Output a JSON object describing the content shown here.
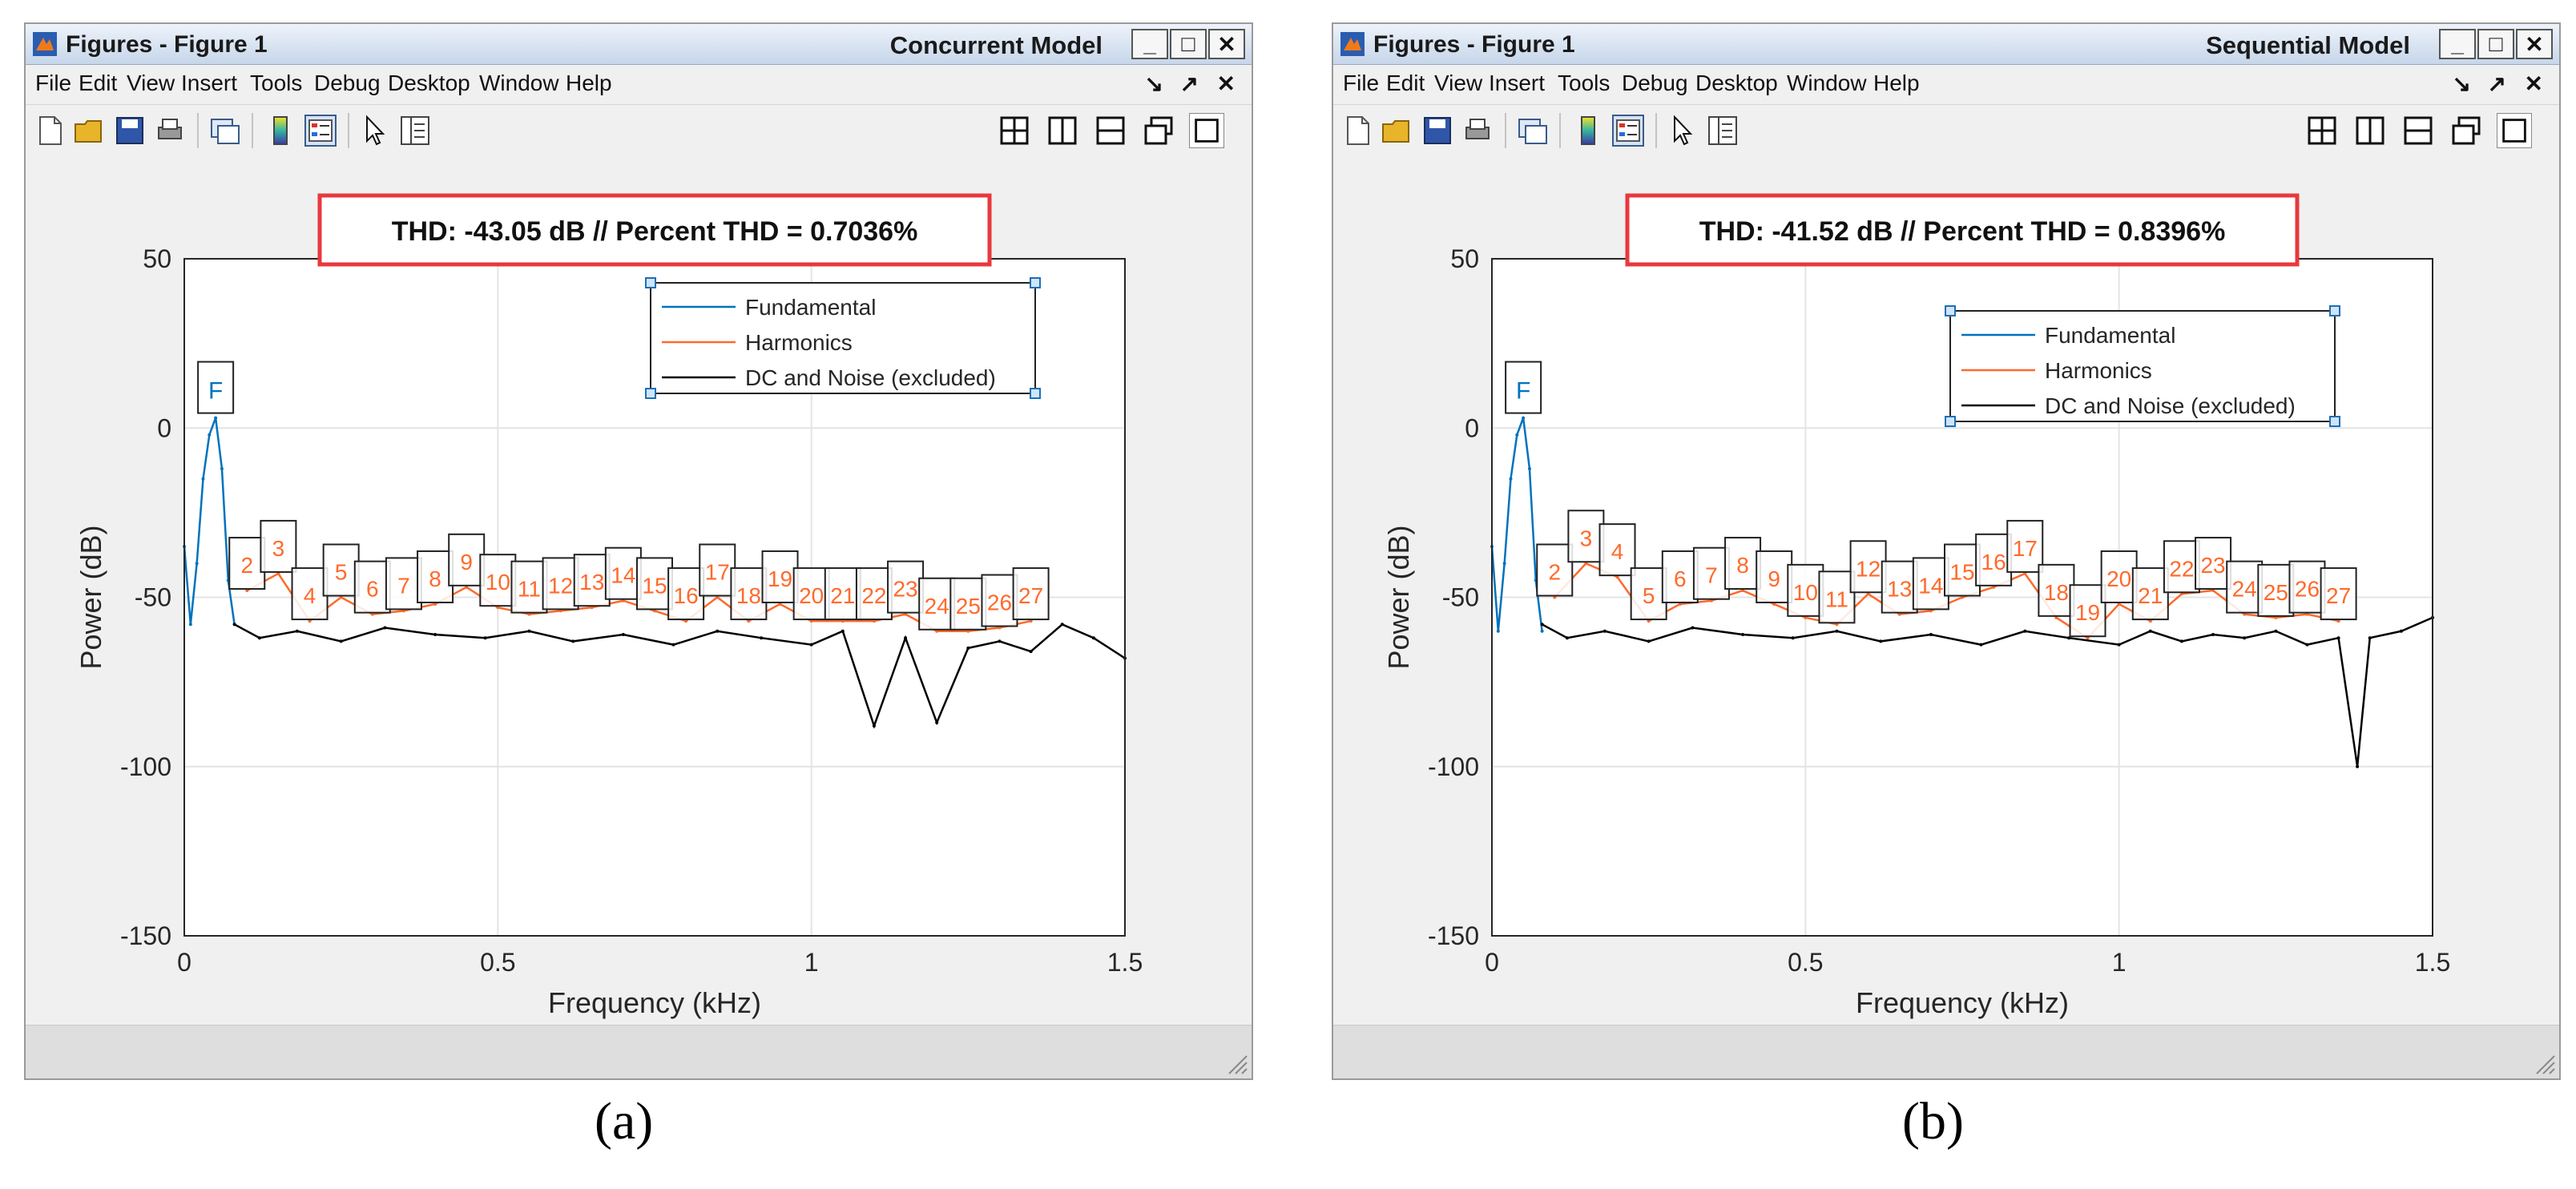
{
  "windows": [
    {
      "title": "Figures - Figure 1",
      "model_label": "Concurrent Model",
      "caption": "(a)",
      "menu": [
        "File",
        "Edit",
        "View",
        "Insert",
        "Tools",
        "Debug",
        "Desktop",
        "Window",
        "Help"
      ],
      "thd_text": "THD: -43.05 dB  //  Percent THD = 0.7036%",
      "legend": [
        "Fundamental",
        "Harmonics",
        "DC and Noise (excluded)"
      ],
      "harmonic_labels": [
        "2",
        "3",
        "4",
        "5",
        "6",
        "7",
        "8",
        "9",
        "10",
        "11",
        "12",
        "13",
        "14",
        "15",
        "16",
        "17",
        "18",
        "19",
        "20",
        "21",
        "22",
        "23",
        "24",
        "25",
        "26",
        "27"
      ]
    },
    {
      "title": "Figures - Figure 1",
      "model_label": "Sequential Model",
      "caption": "(b)",
      "menu": [
        "File",
        "Edit",
        "View",
        "Insert",
        "Tools",
        "Debug",
        "Desktop",
        "Window",
        "Help"
      ],
      "thd_text": "THD: -41.52 dB  //  Percent THD = 0.8396%",
      "legend": [
        "Fundamental",
        "Harmonics",
        "DC and Noise (excluded)"
      ],
      "harmonic_labels": [
        "2",
        "3",
        "4",
        "5",
        "6",
        "7",
        "8",
        "9",
        "10",
        "11",
        "12",
        "13",
        "14",
        "15",
        "16",
        "17",
        "18",
        "19",
        "20",
        "21",
        "22",
        "23",
        "24",
        "25",
        "26",
        "27"
      ]
    }
  ],
  "chart_data": [
    {
      "type": "line",
      "title": "THD: -43.05 dB  //  Percent THD = 0.7036%",
      "xlabel": "Frequency (kHz)",
      "ylabel": "Power (dB)",
      "xlim": [
        0,
        1.5
      ],
      "ylim": [
        -150,
        50
      ],
      "xticks": [
        "0",
        "0.5",
        "1",
        "1.5"
      ],
      "yticks": [
        "50",
        "0",
        "-50",
        "-100",
        "-150"
      ],
      "grid": true,
      "legend_position": "top-right",
      "fundamental": {
        "label": "F",
        "x": 0.05,
        "y": 3
      },
      "series": [
        {
          "name": "Fundamental",
          "color": "#0072bd",
          "x": [
            0.0,
            0.01,
            0.02,
            0.03,
            0.04,
            0.05,
            0.06,
            0.07,
            0.08
          ],
          "values": [
            -35,
            -58,
            -40,
            -15,
            -2,
            3,
            -12,
            -45,
            -58
          ]
        },
        {
          "name": "Harmonics",
          "color": "#ff6a2b",
          "x": [
            0.1,
            0.15,
            0.2,
            0.25,
            0.3,
            0.35,
            0.4,
            0.45,
            0.5,
            0.55,
            0.6,
            0.65,
            0.7,
            0.75,
            0.8,
            0.85,
            0.9,
            0.95,
            1.0,
            1.05,
            1.1,
            1.15,
            1.2,
            1.25,
            1.3,
            1.35
          ],
          "values": [
            -48,
            -43,
            -57,
            -50,
            -55,
            -54,
            -52,
            -47,
            -53,
            -55,
            -54,
            -53,
            -51,
            -54,
            -57,
            -50,
            -57,
            -52,
            -57,
            -57,
            -57,
            -55,
            -60,
            -60,
            -59,
            -57
          ]
        },
        {
          "name": "DC and Noise (excluded)",
          "color": "#000000",
          "x": [
            0.08,
            0.12,
            0.18,
            0.25,
            0.32,
            0.4,
            0.48,
            0.55,
            0.62,
            0.7,
            0.78,
            0.85,
            0.92,
            1.0,
            1.05,
            1.1,
            1.15,
            1.2,
            1.25,
            1.3,
            1.35,
            1.4,
            1.45,
            1.5
          ],
          "values": [
            -58,
            -62,
            -60,
            -63,
            -59,
            -61,
            -62,
            -60,
            -63,
            -61,
            -64,
            -60,
            -62,
            -64,
            -60,
            -88,
            -62,
            -87,
            -65,
            -63,
            -66,
            -58,
            -62,
            -68
          ]
        }
      ]
    },
    {
      "type": "line",
      "title": "THD: -41.52 dB  //  Percent THD = 0.8396%",
      "xlabel": "Frequency (kHz)",
      "ylabel": "Power (dB)",
      "xlim": [
        0,
        1.5
      ],
      "ylim": [
        -150,
        50
      ],
      "xticks": [
        "0",
        "0.5",
        "1",
        "1.5"
      ],
      "yticks": [
        "50",
        "0",
        "-50",
        "-100",
        "-150"
      ],
      "grid": true,
      "legend_position": "top-right",
      "fundamental": {
        "label": "F",
        "x": 0.05,
        "y": 3
      },
      "series": [
        {
          "name": "Fundamental",
          "color": "#0072bd",
          "x": [
            0.0,
            0.01,
            0.02,
            0.03,
            0.04,
            0.05,
            0.06,
            0.07,
            0.08
          ],
          "values": [
            -35,
            -60,
            -40,
            -15,
            -2,
            3,
            -12,
            -45,
            -60
          ]
        },
        {
          "name": "Harmonics",
          "color": "#ff6a2b",
          "x": [
            0.1,
            0.15,
            0.2,
            0.25,
            0.3,
            0.35,
            0.4,
            0.45,
            0.5,
            0.55,
            0.6,
            0.65,
            0.7,
            0.75,
            0.8,
            0.85,
            0.9,
            0.95,
            1.0,
            1.05,
            1.1,
            1.15,
            1.2,
            1.25,
            1.3,
            1.35
          ],
          "values": [
            -50,
            -40,
            -44,
            -57,
            -52,
            -51,
            -48,
            -52,
            -56,
            -58,
            -49,
            -55,
            -54,
            -50,
            -47,
            -43,
            -56,
            -62,
            -52,
            -57,
            -49,
            -48,
            -55,
            -56,
            -55,
            -57
          ]
        },
        {
          "name": "DC and Noise (excluded)",
          "color": "#000000",
          "x": [
            0.08,
            0.12,
            0.18,
            0.25,
            0.32,
            0.4,
            0.48,
            0.55,
            0.62,
            0.7,
            0.78,
            0.85,
            0.92,
            1.0,
            1.05,
            1.1,
            1.15,
            1.2,
            1.25,
            1.3,
            1.35,
            1.38,
            1.4,
            1.45,
            1.5
          ],
          "values": [
            -58,
            -62,
            -60,
            -63,
            -59,
            -61,
            -62,
            -60,
            -63,
            -61,
            -64,
            -60,
            -62,
            -64,
            -60,
            -63,
            -61,
            -62,
            -60,
            -64,
            -62,
            -100,
            -62,
            -60,
            -56
          ]
        }
      ]
    }
  ]
}
